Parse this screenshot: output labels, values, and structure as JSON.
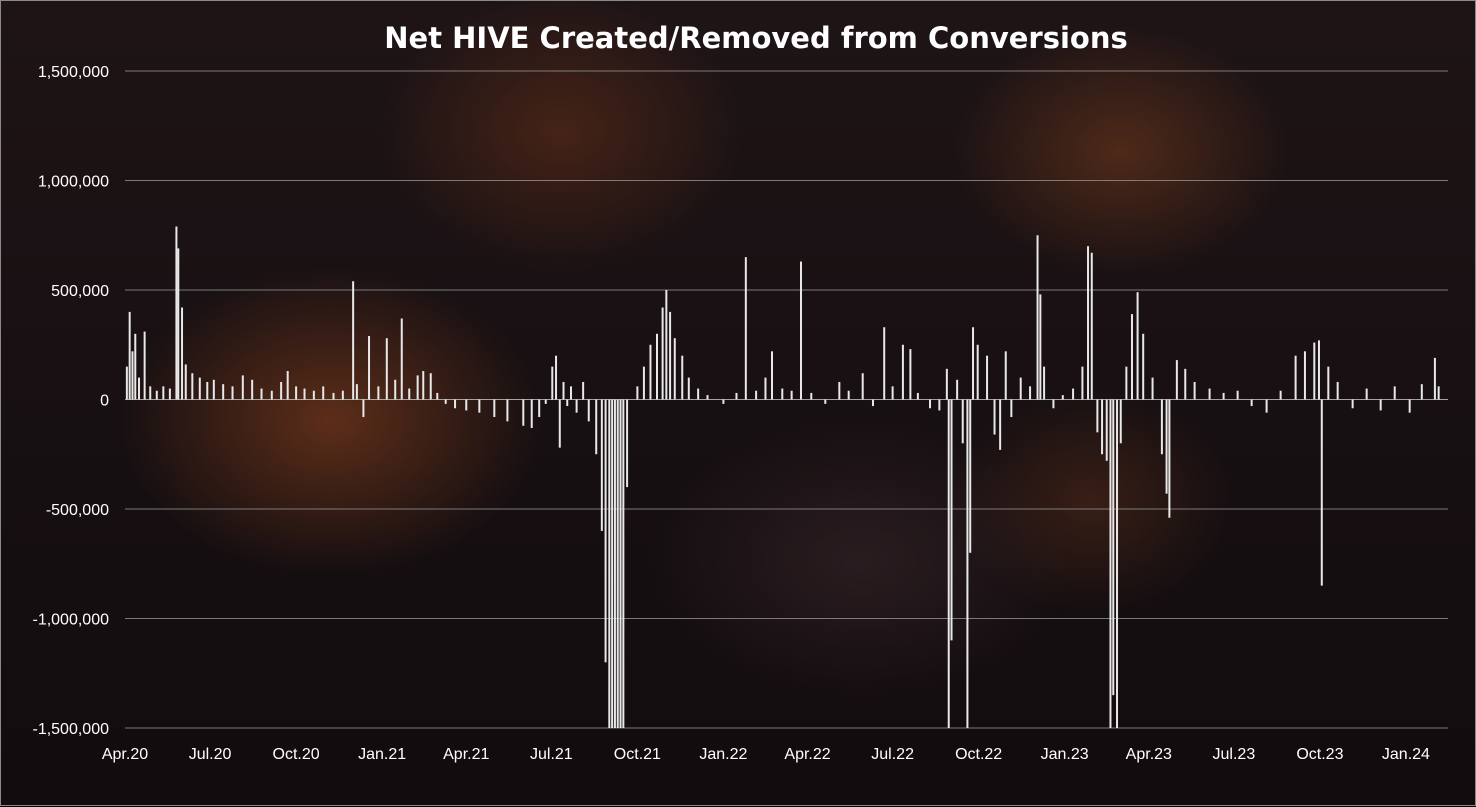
{
  "chart_data": {
    "type": "bar",
    "title": "Net HIVE Created/Removed from Conversions",
    "xlabel": "",
    "ylabel": "",
    "ylim": [
      -1500000,
      1500000
    ],
    "y_ticks": [
      1500000,
      1000000,
      500000,
      0,
      -500000,
      -1000000,
      -1500000
    ],
    "y_tick_labels": [
      "1,500,000",
      "1,000,000",
      "500,000",
      "0",
      "-500,000",
      "-1,000,000",
      "-1,500,000"
    ],
    "x_range": [
      "2020-04-01",
      "2024-02-15"
    ],
    "x_tick_labels": [
      "Apr.20",
      "Jul.20",
      "Oct.20",
      "Jan.21",
      "Apr.21",
      "Jul.21",
      "Oct.21",
      "Jan.22",
      "Apr.22",
      "Jul.22",
      "Oct.22",
      "Jan.23",
      "Apr.23",
      "Jul.23",
      "Oct.23",
      "Jan.24"
    ],
    "grid": true,
    "legend": "none",
    "bar_color": "#e8e8e8",
    "series": [
      {
        "values": [
          [
            "2020-04-03",
            150000
          ],
          [
            "2020-04-06",
            400000
          ],
          [
            "2020-04-09",
            220000
          ],
          [
            "2020-04-12",
            300000
          ],
          [
            "2020-04-16",
            100000
          ],
          [
            "2020-04-22",
            310000
          ],
          [
            "2020-04-28",
            60000
          ],
          [
            "2020-05-05",
            40000
          ],
          [
            "2020-05-12",
            60000
          ],
          [
            "2020-05-19",
            50000
          ],
          [
            "2020-05-26",
            790000
          ],
          [
            "2020-05-28",
            690000
          ],
          [
            "2020-06-01",
            420000
          ],
          [
            "2020-06-05",
            160000
          ],
          [
            "2020-06-12",
            120000
          ],
          [
            "2020-06-20",
            100000
          ],
          [
            "2020-06-28",
            80000
          ],
          [
            "2020-07-05",
            90000
          ],
          [
            "2020-07-15",
            70000
          ],
          [
            "2020-07-25",
            60000
          ],
          [
            "2020-08-05",
            110000
          ],
          [
            "2020-08-15",
            90000
          ],
          [
            "2020-08-25",
            50000
          ],
          [
            "2020-09-05",
            40000
          ],
          [
            "2020-09-15",
            80000
          ],
          [
            "2020-09-22",
            130000
          ],
          [
            "2020-10-01",
            60000
          ],
          [
            "2020-10-10",
            50000
          ],
          [
            "2020-10-20",
            40000
          ],
          [
            "2020-10-30",
            60000
          ],
          [
            "2020-11-10",
            30000
          ],
          [
            "2020-11-20",
            40000
          ],
          [
            "2020-12-01",
            540000
          ],
          [
            "2020-12-05",
            70000
          ],
          [
            "2020-12-12",
            -80000
          ],
          [
            "2020-12-18",
            290000
          ],
          [
            "2020-12-28",
            60000
          ],
          [
            "2021-01-06",
            280000
          ],
          [
            "2021-01-15",
            90000
          ],
          [
            "2021-01-22",
            370000
          ],
          [
            "2021-01-30",
            50000
          ],
          [
            "2021-02-08",
            110000
          ],
          [
            "2021-02-14",
            130000
          ],
          [
            "2021-02-22",
            120000
          ],
          [
            "2021-03-01",
            30000
          ],
          [
            "2021-03-10",
            -20000
          ],
          [
            "2021-03-20",
            -40000
          ],
          [
            "2021-04-01",
            -50000
          ],
          [
            "2021-04-15",
            -60000
          ],
          [
            "2021-05-01",
            -80000
          ],
          [
            "2021-05-15",
            -100000
          ],
          [
            "2021-06-01",
            -120000
          ],
          [
            "2021-06-10",
            -130000
          ],
          [
            "2021-06-18",
            -80000
          ],
          [
            "2021-06-25",
            -20000
          ],
          [
            "2021-07-02",
            150000
          ],
          [
            "2021-07-06",
            200000
          ],
          [
            "2021-07-10",
            -220000
          ],
          [
            "2021-07-14",
            80000
          ],
          [
            "2021-07-18",
            -30000
          ],
          [
            "2021-07-22",
            60000
          ],
          [
            "2021-07-28",
            -60000
          ],
          [
            "2021-08-04",
            80000
          ],
          [
            "2021-08-10",
            -100000
          ],
          [
            "2021-08-18",
            -250000
          ],
          [
            "2021-08-24",
            -600000
          ],
          [
            "2021-08-28",
            -1200000
          ],
          [
            "2021-09-01",
            -1500000
          ],
          [
            "2021-09-04",
            -1500000
          ],
          [
            "2021-09-07",
            -1500000
          ],
          [
            "2021-09-10",
            -1500000
          ],
          [
            "2021-09-13",
            -1500000
          ],
          [
            "2021-09-16",
            -1500000
          ],
          [
            "2021-09-20",
            -400000
          ],
          [
            "2021-10-01",
            60000
          ],
          [
            "2021-10-08",
            150000
          ],
          [
            "2021-10-15",
            250000
          ],
          [
            "2021-10-22",
            300000
          ],
          [
            "2021-10-28",
            420000
          ],
          [
            "2021-11-01",
            500000
          ],
          [
            "2021-11-05",
            400000
          ],
          [
            "2021-11-10",
            280000
          ],
          [
            "2021-11-18",
            200000
          ],
          [
            "2021-11-25",
            100000
          ],
          [
            "2021-12-05",
            50000
          ],
          [
            "2021-12-15",
            20000
          ],
          [
            "2022-01-01",
            -20000
          ],
          [
            "2022-01-15",
            30000
          ],
          [
            "2022-01-25",
            650000
          ],
          [
            "2022-02-05",
            40000
          ],
          [
            "2022-02-15",
            100000
          ],
          [
            "2022-02-22",
            220000
          ],
          [
            "2022-03-05",
            50000
          ],
          [
            "2022-03-15",
            40000
          ],
          [
            "2022-03-25",
            630000
          ],
          [
            "2022-04-05",
            30000
          ],
          [
            "2022-04-20",
            -20000
          ],
          [
            "2022-05-05",
            80000
          ],
          [
            "2022-05-15",
            40000
          ],
          [
            "2022-05-30",
            120000
          ],
          [
            "2022-06-10",
            -30000
          ],
          [
            "2022-06-22",
            330000
          ],
          [
            "2022-07-01",
            60000
          ],
          [
            "2022-07-12",
            250000
          ],
          [
            "2022-07-20",
            230000
          ],
          [
            "2022-07-28",
            30000
          ],
          [
            "2022-08-10",
            -40000
          ],
          [
            "2022-08-20",
            -50000
          ],
          [
            "2022-08-28",
            140000
          ],
          [
            "2022-08-30",
            -1500000
          ],
          [
            "2022-09-02",
            -1100000
          ],
          [
            "2022-09-08",
            90000
          ],
          [
            "2022-09-14",
            -200000
          ],
          [
            "2022-09-19",
            -1500000
          ],
          [
            "2022-09-22",
            -700000
          ],
          [
            "2022-09-25",
            330000
          ],
          [
            "2022-09-30",
            250000
          ],
          [
            "2022-10-10",
            200000
          ],
          [
            "2022-10-18",
            -160000
          ],
          [
            "2022-10-24",
            -230000
          ],
          [
            "2022-10-30",
            220000
          ],
          [
            "2022-11-05",
            -80000
          ],
          [
            "2022-11-15",
            100000
          ],
          [
            "2022-11-25",
            60000
          ],
          [
            "2022-12-03",
            750000
          ],
          [
            "2022-12-06",
            480000
          ],
          [
            "2022-12-10",
            150000
          ],
          [
            "2022-12-20",
            -40000
          ],
          [
            "2022-12-30",
            20000
          ],
          [
            "2023-01-10",
            50000
          ],
          [
            "2023-01-20",
            150000
          ],
          [
            "2023-01-26",
            700000
          ],
          [
            "2023-01-30",
            670000
          ],
          [
            "2023-02-05",
            -150000
          ],
          [
            "2023-02-10",
            -250000
          ],
          [
            "2023-02-15",
            -280000
          ],
          [
            "2023-02-19",
            -1500000
          ],
          [
            "2023-02-22",
            -1350000
          ],
          [
            "2023-02-26",
            -1500000
          ],
          [
            "2023-03-02",
            -200000
          ],
          [
            "2023-03-08",
            150000
          ],
          [
            "2023-03-14",
            390000
          ],
          [
            "2023-03-20",
            490000
          ],
          [
            "2023-03-26",
            300000
          ],
          [
            "2023-04-05",
            100000
          ],
          [
            "2023-04-15",
            -250000
          ],
          [
            "2023-04-20",
            -430000
          ],
          [
            "2023-04-23",
            -540000
          ],
          [
            "2023-05-01",
            180000
          ],
          [
            "2023-05-10",
            140000
          ],
          [
            "2023-05-20",
            80000
          ],
          [
            "2023-06-05",
            50000
          ],
          [
            "2023-06-20",
            30000
          ],
          [
            "2023-07-05",
            40000
          ],
          [
            "2023-07-20",
            -30000
          ],
          [
            "2023-08-05",
            -60000
          ],
          [
            "2023-08-20",
            40000
          ],
          [
            "2023-09-05",
            200000
          ],
          [
            "2023-09-15",
            220000
          ],
          [
            "2023-09-25",
            260000
          ],
          [
            "2023-09-30",
            270000
          ],
          [
            "2023-10-03",
            -850000
          ],
          [
            "2023-10-10",
            150000
          ],
          [
            "2023-10-20",
            80000
          ],
          [
            "2023-11-05",
            -40000
          ],
          [
            "2023-11-20",
            50000
          ],
          [
            "2023-12-05",
            -50000
          ],
          [
            "2023-12-20",
            60000
          ],
          [
            "2024-01-05",
            -60000
          ],
          [
            "2024-01-18",
            70000
          ],
          [
            "2024-02-01",
            190000
          ],
          [
            "2024-02-05",
            60000
          ]
        ]
      }
    ]
  }
}
